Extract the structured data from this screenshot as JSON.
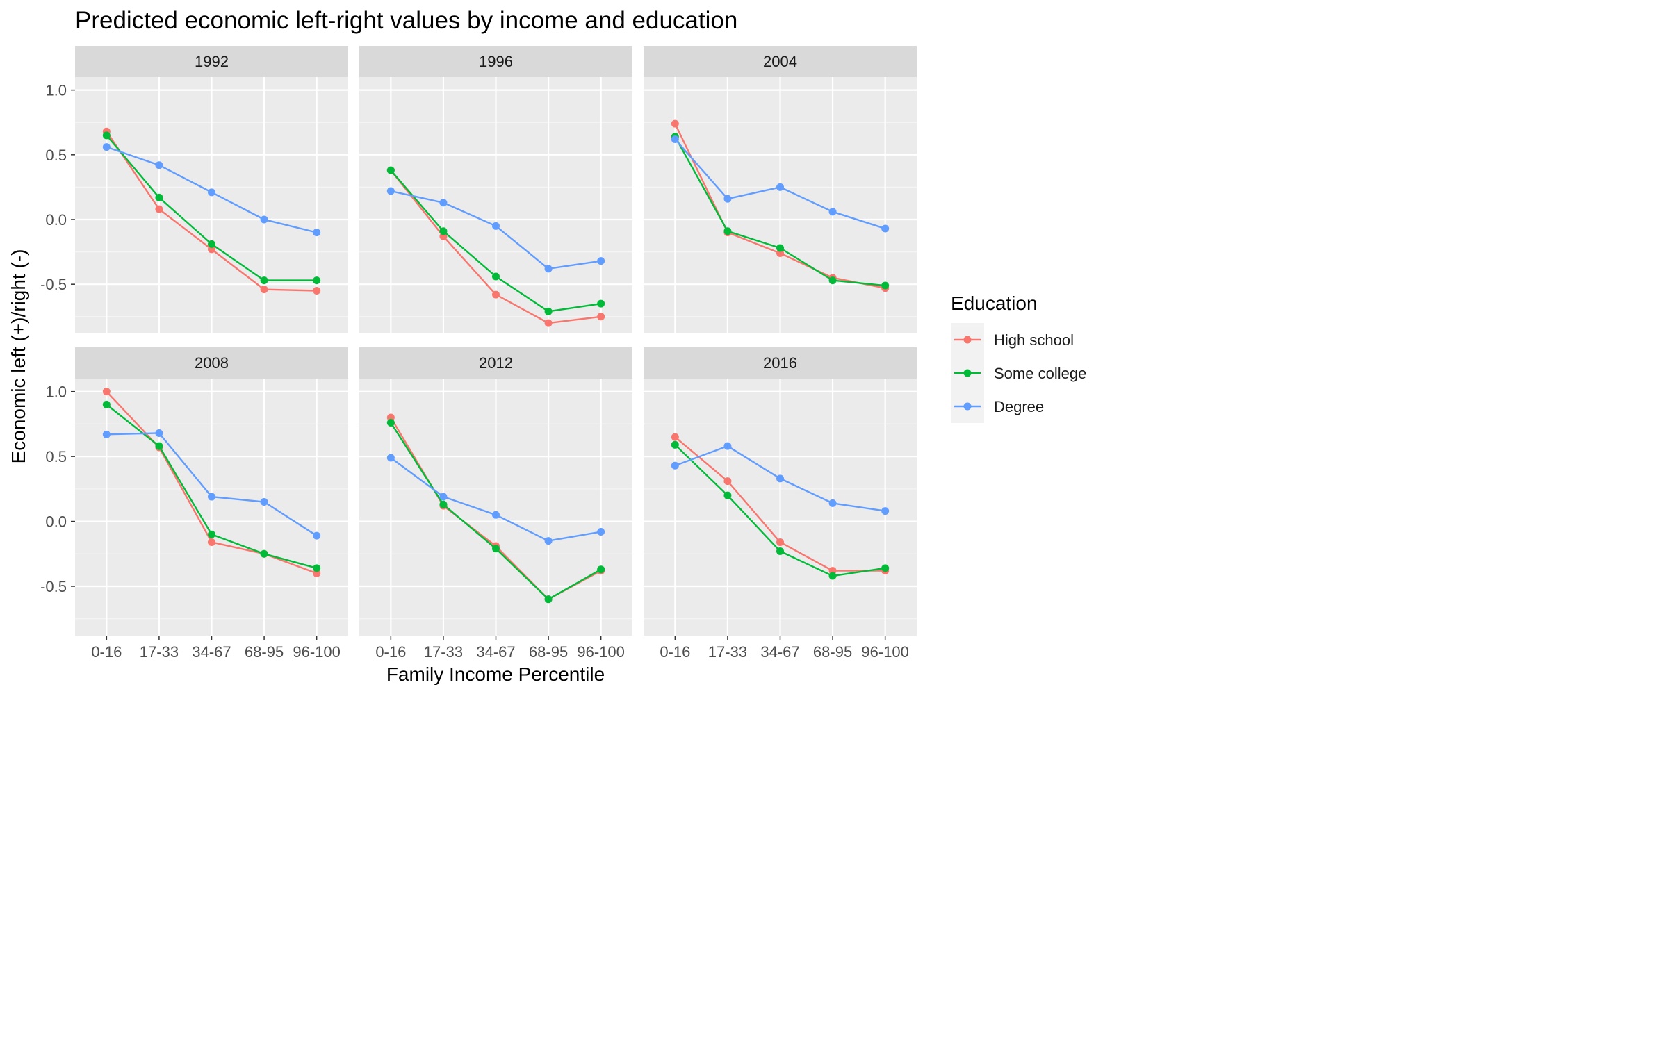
{
  "chart_data": {
    "type": "line",
    "title": "Predicted economic left-right values by income and education",
    "xlabel": "Family Income Percentile",
    "ylabel": "Economic left (+)/right (-)",
    "categories": [
      "0-16",
      "17-33",
      "34-67",
      "68-95",
      "96-100"
    ],
    "y_ticks": [
      1.0,
      0.5,
      0.0,
      -0.5
    ],
    "y_tick_labels": [
      "1.0",
      "0.5",
      "0.0",
      "-0.5"
    ],
    "ylim": [
      -0.88,
      1.1
    ],
    "grid": true,
    "legend": {
      "title": "Education",
      "position": "right",
      "entries": [
        {
          "name": "High school",
          "color": "#F8766D"
        },
        {
          "name": "Some college",
          "color": "#00BA38"
        },
        {
          "name": "Degree",
          "color": "#619CFF"
        }
      ]
    },
    "panels": [
      {
        "label": "1992",
        "series": [
          {
            "name": "High school",
            "values": [
              0.68,
              0.08,
              -0.23,
              -0.54,
              -0.55
            ]
          },
          {
            "name": "Some college",
            "values": [
              0.65,
              0.17,
              -0.19,
              -0.47,
              -0.47
            ]
          },
          {
            "name": "Degree",
            "values": [
              0.56,
              0.42,
              0.21,
              0.0,
              -0.1
            ]
          }
        ]
      },
      {
        "label": "1996",
        "series": [
          {
            "name": "High school",
            "values": [
              0.38,
              -0.13,
              -0.58,
              -0.8,
              -0.75
            ]
          },
          {
            "name": "Some college",
            "values": [
              0.38,
              -0.09,
              -0.44,
              -0.71,
              -0.65
            ]
          },
          {
            "name": "Degree",
            "values": [
              0.22,
              0.13,
              -0.05,
              -0.38,
              -0.32
            ]
          }
        ]
      },
      {
        "label": "2004",
        "series": [
          {
            "name": "High school",
            "values": [
              0.74,
              -0.1,
              -0.26,
              -0.45,
              -0.53
            ]
          },
          {
            "name": "Some college",
            "values": [
              0.64,
              -0.09,
              -0.22,
              -0.47,
              -0.51
            ]
          },
          {
            "name": "Degree",
            "values": [
              0.62,
              0.16,
              0.25,
              0.06,
              -0.07
            ]
          }
        ]
      },
      {
        "label": "2008",
        "series": [
          {
            "name": "High school",
            "values": [
              1.0,
              0.57,
              -0.16,
              -0.25,
              -0.4
            ]
          },
          {
            "name": "Some college",
            "values": [
              0.9,
              0.58,
              -0.1,
              -0.25,
              -0.36
            ]
          },
          {
            "name": "Degree",
            "values": [
              0.67,
              0.68,
              0.19,
              0.15,
              -0.11
            ]
          }
        ]
      },
      {
        "label": "2012",
        "series": [
          {
            "name": "High school",
            "values": [
              0.8,
              0.12,
              -0.19,
              -0.6,
              -0.38
            ]
          },
          {
            "name": "Some college",
            "values": [
              0.76,
              0.13,
              -0.21,
              -0.6,
              -0.37
            ]
          },
          {
            "name": "Degree",
            "values": [
              0.49,
              0.19,
              0.05,
              -0.15,
              -0.08
            ]
          }
        ]
      },
      {
        "label": "2016",
        "series": [
          {
            "name": "High school",
            "values": [
              0.65,
              0.31,
              -0.16,
              -0.38,
              -0.38
            ]
          },
          {
            "name": "Some college",
            "values": [
              0.59,
              0.2,
              -0.23,
              -0.42,
              -0.36
            ]
          },
          {
            "name": "Degree",
            "values": [
              0.43,
              0.58,
              0.33,
              0.14,
              0.08
            ]
          }
        ]
      }
    ]
  }
}
